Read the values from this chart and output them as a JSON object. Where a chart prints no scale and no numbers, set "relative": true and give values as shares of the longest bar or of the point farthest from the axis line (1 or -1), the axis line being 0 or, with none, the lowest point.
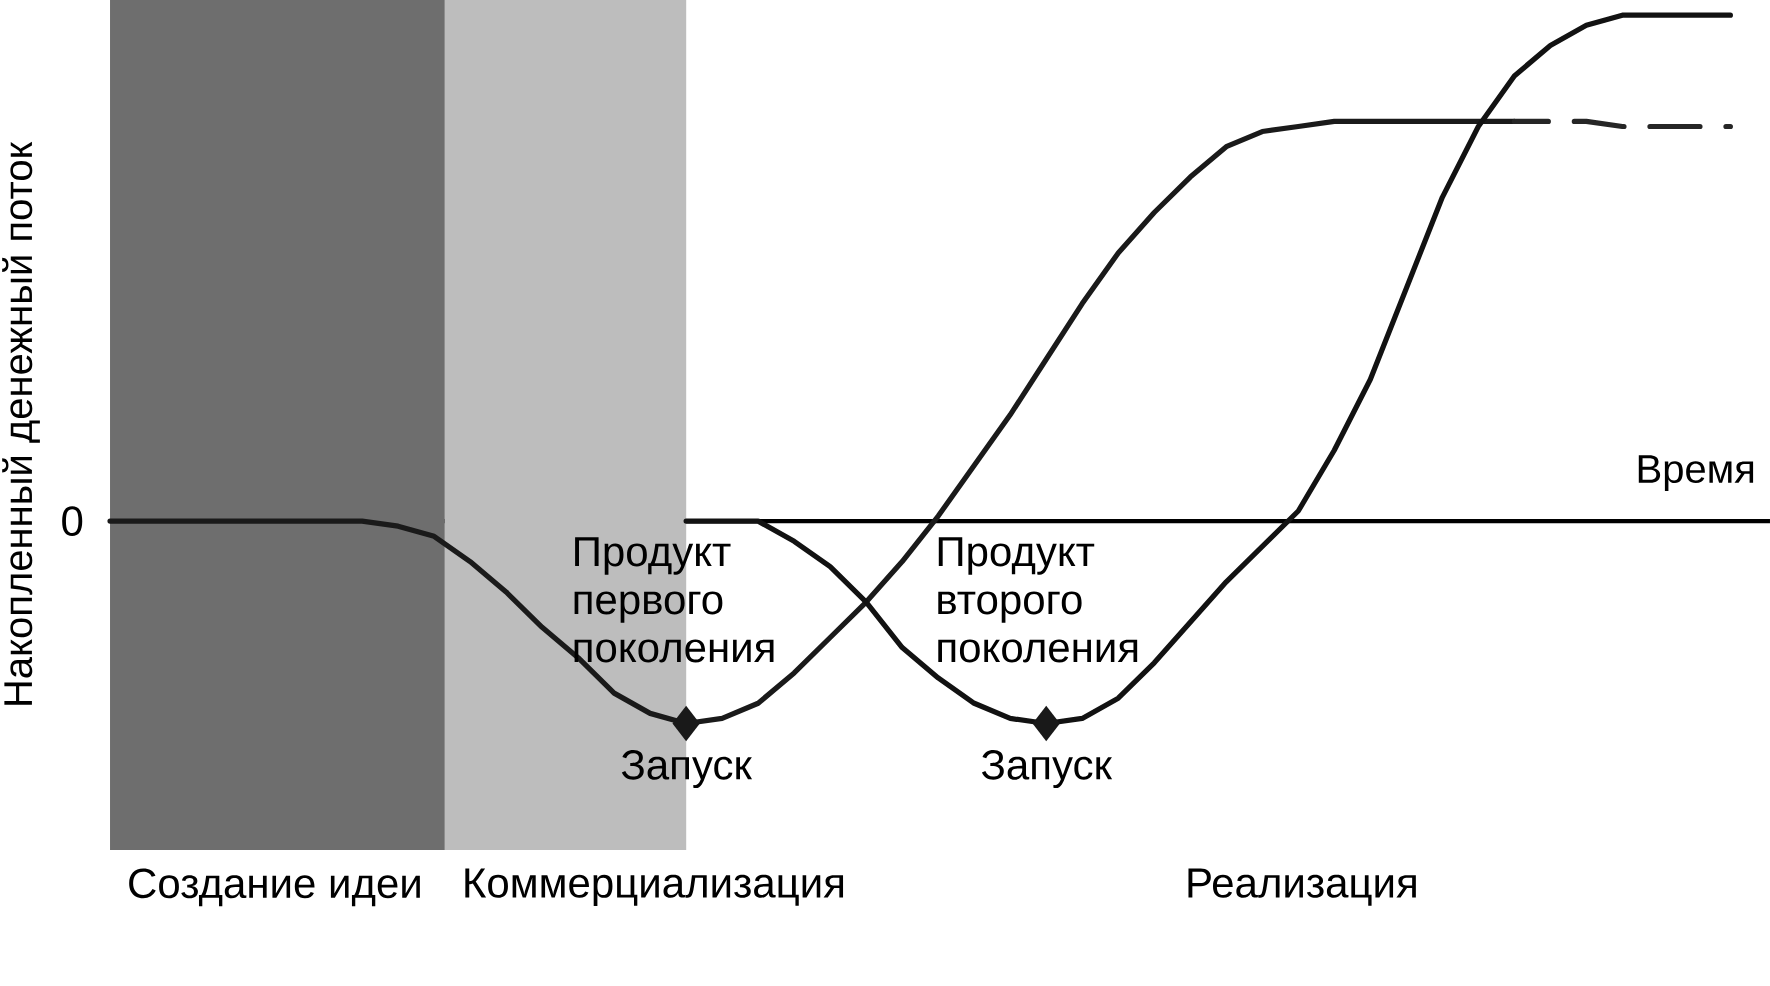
{
  "chart_data": {
    "type": "line",
    "relative": true,
    "xlabel": "Время",
    "ylabel": "Накопленный денежный поток",
    "categories": [
      null,
      null,
      null,
      null,
      null,
      null,
      null,
      null,
      null,
      null,
      null,
      null,
      null,
      null,
      null,
      null,
      null,
      null,
      null,
      null,
      null,
      null,
      null,
      null,
      null,
      null,
      null,
      null,
      null,
      null,
      null,
      null,
      null,
      null,
      null,
      null,
      null,
      null,
      null,
      null,
      null,
      null,
      null,
      null,
      null,
      null
    ],
    "series": [
      {
        "color": "#1a1a1a",
        "values": [
          0,
          0,
          0,
          0,
          0,
          0,
          0,
          0,
          -0.01,
          -0.03,
          -0.08,
          -0.14,
          -0.21,
          -0.27,
          -0.34,
          -0.38,
          -0.4,
          -0.39,
          -0.36,
          -0.3,
          -0.23,
          -0.16,
          -0.08,
          0.01,
          0.11,
          0.21,
          0.32,
          0.43,
          0.53,
          0.61,
          0.68,
          0.74,
          0.77,
          0.78,
          0.79,
          0.79,
          0.79,
          0.79,
          0.79,
          0.79,
          null,
          null,
          null,
          null,
          null,
          null
        ]
      },
      {
        "color": "#262626",
        "line_style": "dashed",
        "values": [
          null,
          null,
          null,
          null,
          null,
          null,
          null,
          null,
          null,
          null,
          null,
          null,
          null,
          null,
          null,
          null,
          null,
          null,
          null,
          null,
          null,
          null,
          null,
          null,
          null,
          null,
          null,
          null,
          null,
          null,
          null,
          null,
          null,
          null,
          null,
          null,
          null,
          null,
          null,
          0.79,
          0.79,
          0.79,
          0.78,
          0.78,
          0.78,
          0.78
        ]
      },
      {
        "color": "#121212",
        "values": [
          null,
          null,
          null,
          null,
          null,
          null,
          null,
          null,
          null,
          null,
          null,
          null,
          null,
          null,
          null,
          null,
          0,
          0,
          0,
          -0.04,
          -0.09,
          -0.16,
          -0.25,
          -0.31,
          -0.36,
          -0.39,
          -0.4,
          -0.39,
          -0.35,
          -0.28,
          -0.2,
          -0.12,
          -0.05,
          0.02,
          0.14,
          0.28,
          0.46,
          0.64,
          0.78,
          0.88,
          0.94,
          0.98,
          1,
          1,
          1,
          1
        ]
      }
    ],
    "annotations": [
      "0",
      "Продукт первого поколения",
      {
        "text": "Запуск",
        "y": -0.4
      },
      "Продукт второго поколения",
      {
        "text": "Запуск",
        "y": -0.4
      },
      "Реализация",
      "Создание идеи",
      "Коммерциализация"
    ]
  }
}
